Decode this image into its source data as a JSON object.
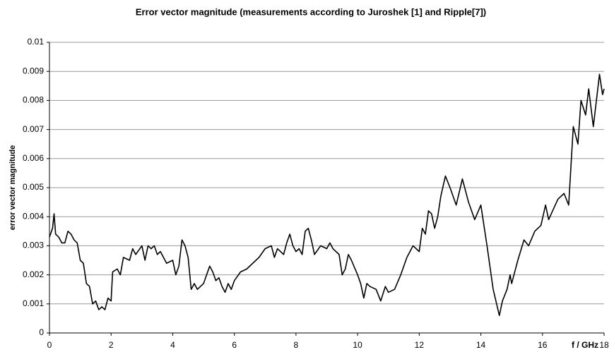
{
  "chart_data": {
    "type": "line",
    "title": "Error vector magnitude (measurements according to Juroshek [1] and Ripple[7])",
    "ylabel": "error vector magnitude",
    "xlabel": "f / GHz",
    "x": [
      0,
      0.1,
      0.15,
      0.2,
      0.3,
      0.4,
      0.5,
      0.6,
      0.7,
      0.8,
      0.9,
      1.0,
      1.1,
      1.2,
      1.3,
      1.4,
      1.5,
      1.6,
      1.7,
      1.8,
      1.9,
      2.0,
      2.05,
      2.2,
      2.3,
      2.4,
      2.6,
      2.7,
      2.8,
      3.0,
      3.1,
      3.2,
      3.3,
      3.4,
      3.5,
      3.6,
      3.7,
      3.8,
      4.0,
      4.1,
      4.2,
      4.3,
      4.4,
      4.5,
      4.6,
      4.7,
      4.8,
      5.0,
      5.2,
      5.3,
      5.4,
      5.5,
      5.6,
      5.7,
      5.8,
      5.9,
      6.0,
      6.2,
      6.4,
      6.6,
      6.8,
      7.0,
      7.2,
      7.3,
      7.4,
      7.6,
      7.7,
      7.8,
      7.9,
      8.0,
      8.1,
      8.2,
      8.3,
      8.4,
      8.5,
      8.6,
      8.8,
      9.0,
      9.1,
      9.2,
      9.4,
      9.5,
      9.6,
      9.7,
      9.8,
      10.0,
      10.1,
      10.2,
      10.3,
      10.4,
      10.6,
      10.75,
      10.9,
      11.0,
      11.2,
      11.4,
      11.6,
      11.8,
      12.0,
      12.1,
      12.2,
      12.3,
      12.4,
      12.5,
      12.6,
      12.7,
      12.85,
      13.0,
      13.2,
      13.4,
      13.6,
      13.8,
      14.0,
      14.2,
      14.4,
      14.6,
      14.7,
      14.85,
      14.95,
      15.0,
      15.2,
      15.4,
      15.55,
      15.75,
      15.95,
      16.1,
      16.2,
      16.5,
      16.7,
      16.85,
      17.0,
      17.15,
      17.25,
      17.4,
      17.5,
      17.65,
      17.85,
      17.95,
      18.0
    ],
    "series": [
      {
        "name": "error vector magnitude",
        "color": "#000000",
        "values": [
          0.0033,
          0.0036,
          0.0041,
          0.0034,
          0.0033,
          0.0031,
          0.0031,
          0.0035,
          0.0034,
          0.0032,
          0.0031,
          0.0025,
          0.0024,
          0.0017,
          0.0016,
          0.001,
          0.0011,
          0.0008,
          0.0009,
          0.0008,
          0.0012,
          0.0011,
          0.0021,
          0.0022,
          0.002,
          0.0026,
          0.0025,
          0.0029,
          0.0027,
          0.003,
          0.0025,
          0.003,
          0.0029,
          0.003,
          0.0027,
          0.0028,
          0.0026,
          0.0024,
          0.0025,
          0.002,
          0.0023,
          0.0032,
          0.003,
          0.0026,
          0.0015,
          0.0017,
          0.0015,
          0.0017,
          0.0023,
          0.0021,
          0.0018,
          0.0019,
          0.0016,
          0.0014,
          0.0017,
          0.0015,
          0.0018,
          0.0021,
          0.0022,
          0.0024,
          0.0026,
          0.0029,
          0.003,
          0.0026,
          0.0029,
          0.0027,
          0.0031,
          0.0034,
          0.003,
          0.0028,
          0.0029,
          0.0027,
          0.0035,
          0.0036,
          0.0032,
          0.0027,
          0.003,
          0.0029,
          0.0031,
          0.0029,
          0.0027,
          0.002,
          0.0022,
          0.0027,
          0.0025,
          0.002,
          0.0017,
          0.0012,
          0.0017,
          0.0016,
          0.0015,
          0.0011,
          0.0016,
          0.0014,
          0.0015,
          0.002,
          0.0026,
          0.003,
          0.0028,
          0.0036,
          0.0034,
          0.0042,
          0.0041,
          0.0036,
          0.004,
          0.0047,
          0.0054,
          0.005,
          0.0044,
          0.0053,
          0.0045,
          0.0039,
          0.0044,
          0.003,
          0.0015,
          0.0006,
          0.0011,
          0.0015,
          0.002,
          0.0017,
          0.0025,
          0.0032,
          0.003,
          0.0035,
          0.0037,
          0.0044,
          0.0039,
          0.0046,
          0.0048,
          0.0044,
          0.0071,
          0.0065,
          0.008,
          0.0075,
          0.0084,
          0.0071,
          0.0089,
          0.0082,
          0.0084
        ]
      }
    ],
    "xlim": [
      0,
      18
    ],
    "xticks": [
      0,
      2,
      4,
      6,
      8,
      10,
      12,
      14,
      16,
      18
    ],
    "ylim": [
      0,
      0.01
    ],
    "yticks": [
      0,
      0.001,
      0.002,
      0.003,
      0.004,
      0.005,
      0.006,
      0.007,
      0.008,
      0.009,
      0.01
    ],
    "grid": true
  }
}
